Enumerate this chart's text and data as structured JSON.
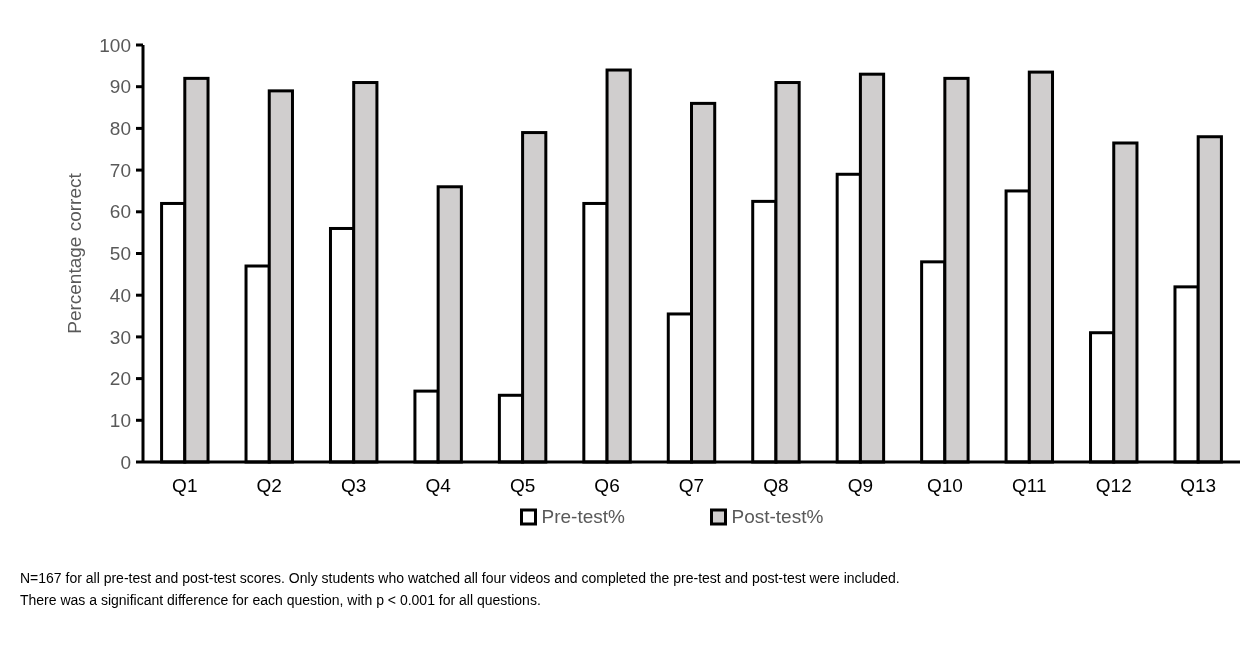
{
  "chart_data": {
    "type": "bar",
    "ylabel": "Percentage correct",
    "categories": [
      "Q1",
      "Q2",
      "Q3",
      "Q4",
      "Q5",
      "Q6",
      "Q7",
      "Q8",
      "Q9",
      "Q10",
      "Q11",
      "Q12",
      "Q13"
    ],
    "series": [
      {
        "name": "Pre-test%",
        "color": "#ffffff",
        "values": [
          62,
          47,
          56,
          17,
          16,
          62,
          35.5,
          62.5,
          69,
          48,
          65,
          31,
          42
        ]
      },
      {
        "name": "Post-test%",
        "color": "#d0cece",
        "values": [
          92,
          89,
          91,
          66,
          79,
          94,
          86,
          91,
          93,
          92,
          93.5,
          76.5,
          78
        ]
      }
    ],
    "ylim": [
      0,
      100
    ],
    "yticks": [
      0,
      10,
      20,
      30,
      40,
      50,
      60,
      70,
      80,
      90,
      100
    ],
    "grid": false,
    "legend": "bottom",
    "annotations": [
      "N=167 for all pre-test and post-test scores. Only students who watched all four videos and completed the pre-test and post-test were included.",
      "There was a significant difference for each question, with p < 0.001 for all questions."
    ]
  }
}
